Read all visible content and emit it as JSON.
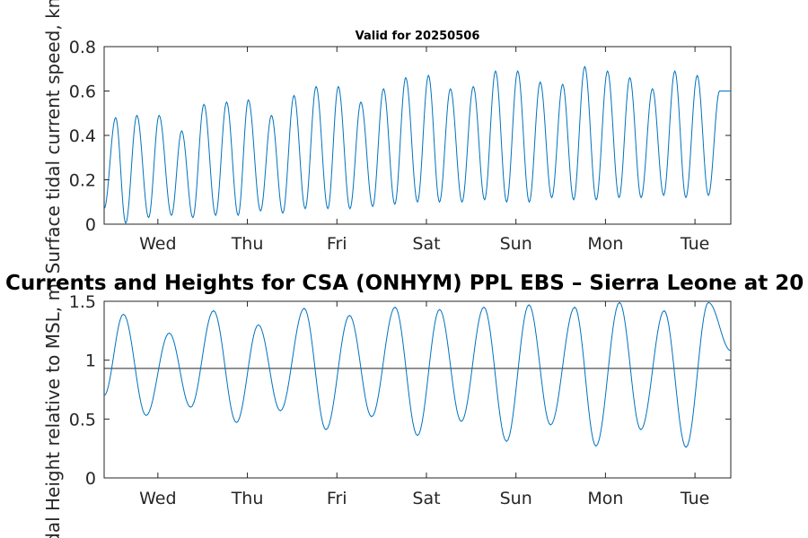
{
  "chart_data": [
    {
      "type": "line",
      "title": "Valid for 20250506",
      "ylabel": "Surface tidal current speed, kn",
      "ylim": [
        0,
        0.8
      ],
      "yticks": [
        "0",
        "0.2",
        "0.4",
        "0.6",
        "0.8"
      ],
      "x_ticks": [
        "Wed",
        "Thu",
        "Fri",
        "Sat",
        "Sun",
        "Mon",
        "Tue"
      ],
      "grid": false,
      "line_color": "#0072BD",
      "series": [
        {
          "x": [
            0.0,
            0.129,
            0.241,
            0.366,
            0.497,
            0.614,
            0.752,
            0.866,
            0.991,
            1.115,
            1.245,
            1.368,
            1.497,
            1.611,
            1.747,
            1.869,
            1.996,
            2.121,
            2.246,
            2.368,
            2.499,
            2.616,
            2.746,
            2.868,
            3.0,
            3.121,
            3.247,
            3.369,
            3.5,
            3.623,
            3.746,
            3.868,
            3.998,
            4.124,
            4.25,
            4.372,
            4.496,
            4.62,
            4.749,
            4.871,
            5.0,
            5.122,
            5.245,
            5.369,
            5.497,
            5.623,
            5.752,
            5.872,
            5.998,
            6.125,
            6.25,
            6.375,
            6.498,
            6.625,
            6.75,
            6.875,
            7.0
          ],
          "y": [
            0.07,
            0.48,
            0.005,
            0.49,
            0.03,
            0.49,
            0.04,
            0.42,
            0.03,
            0.54,
            0.04,
            0.55,
            0.04,
            0.56,
            0.06,
            0.49,
            0.05,
            0.58,
            0.07,
            0.62,
            0.07,
            0.62,
            0.07,
            0.55,
            0.08,
            0.61,
            0.09,
            0.66,
            0.1,
            0.67,
            0.1,
            0.61,
            0.1,
            0.62,
            0.11,
            0.69,
            0.1,
            0.69,
            0.1,
            0.64,
            0.12,
            0.63,
            0.11,
            0.71,
            0.11,
            0.69,
            0.12,
            0.66,
            0.12,
            0.61,
            0.13,
            0.69,
            0.12,
            0.67,
            0.13,
            0.6,
            0.6
          ]
        }
      ]
    },
    {
      "type": "line",
      "title": "Currents and Heights for CSA (ONHYM) PPL EBS  – Sierra Leone at 20",
      "ylabel": "Tidal Height relative to MSL, m",
      "ylim": [
        0,
        1.5
      ],
      "yticks": [
        "0",
        "0.5",
        "1",
        "1.5"
      ],
      "x_ticks": [
        "Wed",
        "Thu",
        "Fri",
        "Sat",
        "Sun",
        "Mon",
        "Tue"
      ],
      "grid": false,
      "line_color": "#0072BD",
      "reference_line": 0.93,
      "series": [
        {
          "x": [
            0.0,
            0.215,
            0.469,
            0.727,
            0.966,
            1.222,
            1.478,
            1.723,
            1.969,
            2.235,
            2.478,
            2.741,
            2.988,
            3.25,
            3.5,
            3.747,
            3.99,
            4.242,
            4.495,
            4.745,
            4.987,
            5.257,
            5.494,
            5.757,
            5.995,
            6.256,
            6.5,
            6.75,
            7.0
          ],
          "y": [
            0.7,
            1.39,
            0.53,
            1.23,
            0.6,
            1.42,
            0.47,
            1.3,
            0.57,
            1.44,
            0.41,
            1.38,
            0.52,
            1.45,
            0.36,
            1.43,
            0.48,
            1.45,
            0.31,
            1.47,
            0.45,
            1.45,
            0.27,
            1.49,
            0.41,
            1.42,
            0.26,
            1.49,
            1.08
          ]
        }
      ]
    }
  ]
}
